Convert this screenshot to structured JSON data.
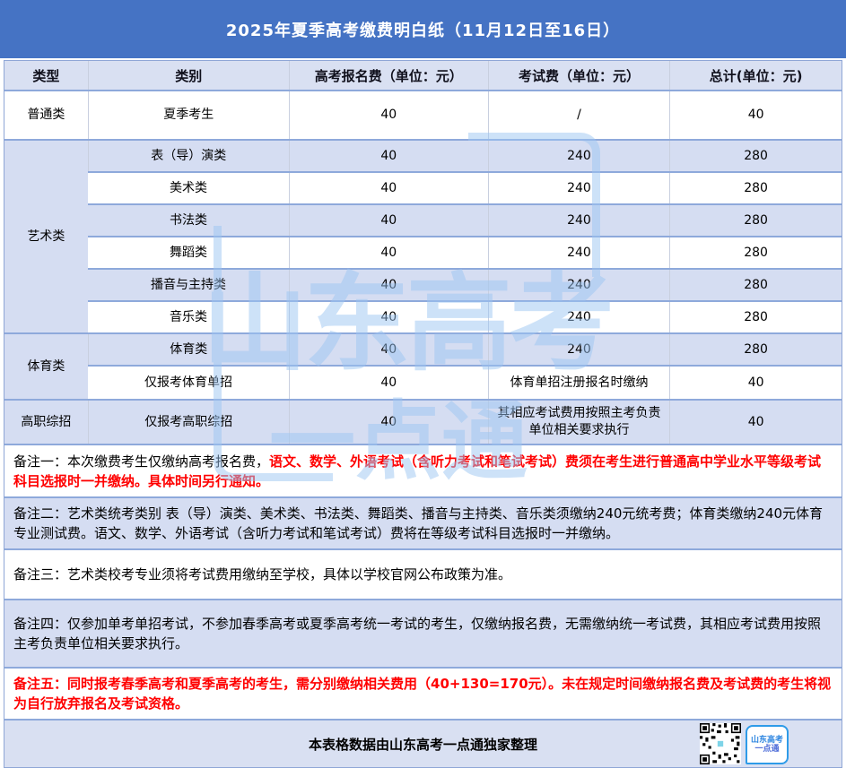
{
  "title": "2025年夏季高考缴费明白纸（11月12日至16日）",
  "table": {
    "headers": [
      "类型",
      "类别",
      "高考报名费（单位：元）",
      "考试费（单位：元）",
      "总计(单位：元)"
    ],
    "groups": [
      {
        "type": "普通类",
        "rows": [
          {
            "category": "夏季考生",
            "reg_fee": "40",
            "exam_fee": "/",
            "total": "40"
          }
        ]
      },
      {
        "type": "艺术类",
        "rows": [
          {
            "category": "表（导）演类",
            "reg_fee": "40",
            "exam_fee": "240",
            "total": "280"
          },
          {
            "category": "美术类",
            "reg_fee": "40",
            "exam_fee": "240",
            "total": "280"
          },
          {
            "category": "书法类",
            "reg_fee": "40",
            "exam_fee": "240",
            "total": "280"
          },
          {
            "category": "舞蹈类",
            "reg_fee": "40",
            "exam_fee": "240",
            "total": "280"
          },
          {
            "category": "播音与主持类",
            "reg_fee": "40",
            "exam_fee": "240",
            "total": "280"
          },
          {
            "category": "音乐类",
            "reg_fee": "40",
            "exam_fee": "240",
            "total": "280"
          }
        ]
      },
      {
        "type": "体育类",
        "rows": [
          {
            "category": "体育类",
            "reg_fee": "40",
            "exam_fee": "240",
            "total": "280"
          },
          {
            "category": "仅报考体育单招",
            "reg_fee": "40",
            "exam_fee": "体育单招注册报名时缴纳",
            "total": "40"
          }
        ]
      },
      {
        "type": "高职综招",
        "rows": [
          {
            "category": "仅报考高职综招",
            "reg_fee": "40",
            "exam_fee": "其相应考试费用按照主考负责单位相关要求执行",
            "total": "40"
          }
        ]
      }
    ]
  },
  "notes": [
    {
      "parts": [
        {
          "style": "plain",
          "text": "备注一：本次缴费考生仅缴纳高考报名费，"
        },
        {
          "style": "red",
          "text": "语文、数学、外语考试（含听力考试和笔试考试）费须在考生进行普通高中学业水平等级考试科目选报时一并缴纳。具体时间另行通知。"
        }
      ]
    },
    {
      "parts": [
        {
          "style": "plain",
          "text": "备注二：艺术类统考类别 表（导）演类、美术类、书法类、舞蹈类、播音与主持类、音乐类须缴纳240元统考费；体育类缴纳240元体育专业测试费。语文、数学、外语考试（含听力考试和笔试考试）费将在等级考试科目选报时一并缴纳。"
        }
      ]
    },
    {
      "parts": [
        {
          "style": "plain",
          "text": "备注三：艺术类校考专业须将考试费用缴纳至学校，具体以学校官网公布政策为准。"
        }
      ]
    },
    {
      "parts": [
        {
          "style": "plain",
          "text": "备注四：仅参加单考单招考试，不参加春季高考或夏季高考统一考试的考生，仅缴纳报名费，无需缴纳统一考试费，其相应考试费用按照主考负责单位相关要求执行。"
        }
      ]
    },
    {
      "parts": [
        {
          "style": "red",
          "text": "备注五：同时报考春季高考和夏季高考的考生，需分别缴纳相关费用（40+130=170元）。未在规定时间缴纳报名费及考试费的考生将视为自行放弃报名及考试资格。"
        }
      ]
    }
  ],
  "footer": {
    "text": "本表格数据由山东高考一点通独家整理",
    "qr_icon": "qr-code",
    "logo_line1": "山东高考",
    "logo_line2": "一点通"
  },
  "watermark": {
    "line1": "山东高考",
    "line2": "一点通"
  },
  "colors": {
    "title_bar": "#4573C4",
    "header_row": "#D9E0F2",
    "row_highlight": "#D5DDF2",
    "row_border": "#8EA9DB",
    "note_red": "#FF0000",
    "watermark_blue": "#9CC6F3",
    "logo_border": "#2E9BE8"
  }
}
